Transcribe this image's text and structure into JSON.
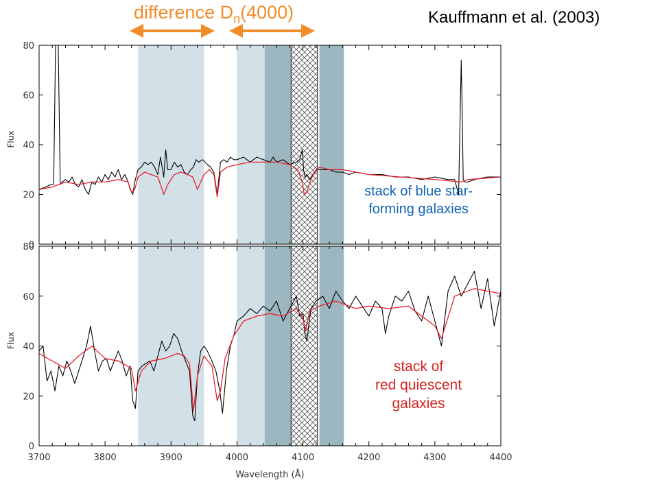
{
  "title_left": "difference D",
  "title_sub": "n",
  "title_right": "(4000)",
  "attribution": "Kauffmann et al. (2003)",
  "blue_label": [
    "stack of blue star-",
    "forming galaxies"
  ],
  "red_label": [
    "stack of",
    "red quiescent",
    "galaxies"
  ],
  "colors": {
    "annotation_orange": "#f28c28",
    "blue_text": "#1264b5",
    "red_text": "#d2231f",
    "light_band": "#d2e1e8",
    "dark_band": "#9db7c1",
    "model_line": "#e8202a",
    "data_line": "#000000"
  },
  "chart_data": [
    {
      "id": "top-panel",
      "type": "line",
      "xlabel": "",
      "ylabel": "Flux",
      "xlim": [
        3700,
        4400
      ],
      "ylim": [
        0,
        80
      ],
      "yticks": [
        0,
        20,
        40,
        60,
        80
      ],
      "shaded_bands": [
        {
          "x0": 3850,
          "x1": 3950,
          "shade": "light"
        },
        {
          "x0": 4000,
          "x1": 4100,
          "shade": "light"
        },
        {
          "x0": 4042,
          "x1": 4082,
          "shade": "dark"
        },
        {
          "x0": 4082,
          "x1": 4122,
          "shade": "hatched"
        },
        {
          "x0": 4125,
          "x1": 4162,
          "shade": "dark"
        }
      ],
      "series": [
        {
          "role": "data",
          "color": "#000000",
          "x": [
            3700,
            3710,
            3718,
            3722,
            3725,
            3729,
            3732,
            3735,
            3740,
            3745,
            3750,
            3755,
            3760,
            3765,
            3770,
            3775,
            3780,
            3785,
            3790,
            3795,
            3800,
            3805,
            3810,
            3815,
            3820,
            3825,
            3830,
            3835,
            3838,
            3842,
            3845,
            3850,
            3855,
            3860,
            3865,
            3870,
            3875,
            3880,
            3884,
            3889,
            3892,
            3895,
            3900,
            3905,
            3910,
            3915,
            3920,
            3925,
            3930,
            3934,
            3938,
            3942,
            3948,
            3955,
            3960,
            3965,
            3970,
            3975,
            3980,
            3985,
            3990,
            3995,
            4000,
            4010,
            4020,
            4030,
            4040,
            4050,
            4055,
            4060,
            4070,
            4080,
            4090,
            4095,
            4099,
            4101,
            4103,
            4106,
            4110,
            4115,
            4120,
            4130,
            4140,
            4150,
            4160,
            4170,
            4180,
            4200,
            4220,
            4240,
            4260,
            4280,
            4300,
            4320,
            4330,
            4336,
            4340,
            4341,
            4343,
            4346,
            4350,
            4360,
            4380,
            4400
          ],
          "y": [
            22,
            23,
            24,
            24,
            80,
            80,
            24,
            25,
            26,
            25,
            27,
            24,
            23,
            26,
            22,
            20,
            25,
            24,
            27,
            25,
            28,
            26,
            29,
            27,
            30,
            26,
            28,
            25,
            22,
            20,
            25,
            30,
            31,
            33,
            32,
            33,
            31,
            28,
            35,
            27,
            38,
            30,
            30,
            33,
            31,
            32,
            29,
            28,
            30,
            31,
            34,
            33,
            34,
            32,
            31,
            29,
            20,
            33,
            34,
            33,
            35,
            34,
            34,
            35,
            33,
            35,
            34,
            33,
            35,
            33,
            34,
            32,
            33,
            34,
            38,
            30,
            27,
            28,
            26,
            28,
            30,
            30,
            30,
            29,
            29,
            28,
            29,
            28,
            28,
            27,
            27,
            26,
            27,
            26,
            26,
            20,
            74,
            60,
            26,
            25,
            25,
            26,
            27,
            27
          ]
        },
        {
          "role": "model",
          "color": "#e8202a",
          "x": [
            3700,
            3720,
            3740,
            3760,
            3780,
            3800,
            3820,
            3835,
            3840,
            3845,
            3850,
            3860,
            3870,
            3880,
            3889,
            3895,
            3905,
            3915,
            3925,
            3933,
            3940,
            3950,
            3958,
            3965,
            3970,
            3975,
            3985,
            4000,
            4020,
            4040,
            4060,
            4080,
            4092,
            4099,
            4102,
            4106,
            4112,
            4118,
            4125,
            4140,
            4160,
            4200,
            4250,
            4300,
            4340,
            4350,
            4400
          ],
          "y": [
            22,
            23,
            25,
            24,
            25,
            25,
            26,
            25,
            21,
            22,
            27,
            29,
            28,
            27,
            20,
            24,
            28,
            29,
            28,
            27,
            22,
            28,
            30,
            28,
            19,
            29,
            31,
            32,
            33,
            33,
            33,
            32,
            30,
            25,
            20,
            21,
            26,
            29,
            31,
            30,
            30,
            28,
            27,
            26,
            25,
            26,
            27
          ]
        }
      ]
    },
    {
      "id": "bottom-panel",
      "type": "line",
      "xlabel": "Wavelength (Å)",
      "ylabel": "Flux",
      "xlim": [
        3700,
        4400
      ],
      "ylim": [
        0,
        80
      ],
      "xticks": [
        3700,
        3800,
        3900,
        4000,
        4100,
        4200,
        4300,
        4400
      ],
      "yticks": [
        0,
        20,
        40,
        60,
        80
      ],
      "shaded_bands": [
        {
          "x0": 3850,
          "x1": 3950,
          "shade": "light"
        },
        {
          "x0": 4000,
          "x1": 4100,
          "shade": "light"
        },
        {
          "x0": 4042,
          "x1": 4082,
          "shade": "dark"
        },
        {
          "x0": 4082,
          "x1": 4122,
          "shade": "hatched"
        },
        {
          "x0": 4125,
          "x1": 4162,
          "shade": "dark"
        }
      ],
      "series": [
        {
          "role": "data",
          "color": "#000000",
          "x": [
            3700,
            3706,
            3712,
            3718,
            3724,
            3730,
            3736,
            3742,
            3748,
            3754,
            3760,
            3766,
            3772,
            3778,
            3784,
            3790,
            3796,
            3802,
            3808,
            3814,
            3820,
            3826,
            3832,
            3838,
            3842,
            3846,
            3850,
            3856,
            3862,
            3868,
            3874,
            3880,
            3886,
            3892,
            3898,
            3904,
            3910,
            3916,
            3922,
            3928,
            3933,
            3936,
            3940,
            3945,
            3950,
            3955,
            3962,
            3968,
            3974,
            3978,
            3984,
            3990,
            3996,
            4000,
            4010,
            4020,
            4030,
            4040,
            4050,
            4060,
            4070,
            4080,
            4090,
            4095,
            4100,
            4103,
            4106,
            4112,
            4120,
            4130,
            4140,
            4150,
            4160,
            4170,
            4180,
            4190,
            4200,
            4210,
            4220,
            4225,
            4230,
            4240,
            4250,
            4260,
            4270,
            4280,
            4290,
            4300,
            4305,
            4310,
            4320,
            4330,
            4340,
            4350,
            4360,
            4370,
            4380,
            4390,
            4400
          ],
          "y": [
            38,
            40,
            26,
            30,
            22,
            32,
            28,
            34,
            30,
            25,
            30,
            35,
            40,
            48,
            38,
            30,
            34,
            35,
            30,
            34,
            38,
            34,
            28,
            32,
            18,
            15,
            30,
            32,
            33,
            34,
            30,
            36,
            42,
            38,
            40,
            45,
            43,
            38,
            34,
            30,
            12,
            10,
            28,
            38,
            40,
            38,
            34,
            30,
            22,
            13,
            30,
            40,
            45,
            50,
            52,
            55,
            53,
            56,
            54,
            58,
            50,
            55,
            60,
            52,
            53,
            45,
            42,
            55,
            58,
            60,
            55,
            62,
            58,
            55,
            60,
            56,
            52,
            58,
            55,
            45,
            52,
            60,
            58,
            62,
            54,
            50,
            60,
            50,
            45,
            40,
            62,
            68,
            60,
            65,
            70,
            55,
            67,
            48,
            62
          ]
        },
        {
          "role": "model",
          "color": "#e8202a",
          "x": [
            3700,
            3720,
            3740,
            3760,
            3780,
            3800,
            3820,
            3840,
            3846,
            3855,
            3870,
            3890,
            3910,
            3920,
            3928,
            3934,
            3940,
            3950,
            3962,
            3970,
            3975,
            3982,
            3995,
            4010,
            4030,
            4050,
            4070,
            4090,
            4100,
            4104,
            4110,
            4125,
            4150,
            4180,
            4200,
            4230,
            4260,
            4300,
            4310,
            4330,
            4360,
            4380,
            4400
          ],
          "y": [
            37,
            34,
            31,
            36,
            40,
            35,
            34,
            31,
            22,
            30,
            34,
            35,
            37,
            36,
            33,
            14,
            28,
            36,
            32,
            18,
            22,
            35,
            44,
            50,
            52,
            53,
            52,
            55,
            51,
            46,
            54,
            56,
            58,
            55,
            56,
            55,
            56,
            48,
            43,
            60,
            63,
            62,
            61
          ]
        }
      ]
    }
  ]
}
